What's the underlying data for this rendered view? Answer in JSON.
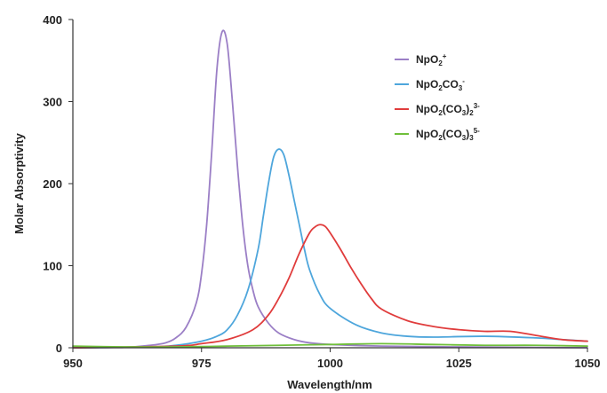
{
  "chart_data": {
    "type": "line",
    "xlabel": "Wavelength/nm",
    "ylabel": "Molar Absorptivity",
    "xlim": [
      950,
      1050
    ],
    "ylim": [
      0,
      400
    ],
    "xticks": [
      950,
      975,
      1000,
      1025,
      1050
    ],
    "yticks": [
      0,
      100,
      200,
      300,
      400
    ],
    "grid": false,
    "legend_position": "top-right",
    "series": [
      {
        "name": "NpO2+",
        "legend": {
          "base": "NpO",
          "sub": "2",
          "tail": "",
          "sup": "+",
          "after": ""
        },
        "color": "#9b7fc6",
        "x": [
          950,
          960,
          965,
          968,
          970,
          972,
          974,
          975,
          976,
          977,
          978,
          979,
          980,
          981,
          982,
          983,
          984,
          985,
          986,
          988,
          990,
          993,
          996,
          1000,
          1010,
          1025,
          1050
        ],
        "y": [
          0,
          0.5,
          3,
          6,
          12,
          25,
          55,
          90,
          150,
          240,
          340,
          385,
          370,
          300,
          220,
          150,
          100,
          70,
          50,
          30,
          18,
          10,
          6,
          4,
          2,
          1,
          0
        ]
      },
      {
        "name": "NpO2CO3-",
        "legend": {
          "base": "NpO",
          "sub": "2",
          "tail": "CO",
          "sup": "-",
          "after": "",
          "sub2": "3"
        },
        "color": "#4ea6dc",
        "x": [
          950,
          965,
          970,
          975,
          978,
          980,
          982,
          984,
          986,
          987,
          988,
          989,
          990,
          991,
          992,
          993,
          994,
          995,
          996,
          998,
          1000,
          1005,
          1010,
          1015,
          1020,
          1030,
          1040,
          1045,
          1050
        ],
        "y": [
          0,
          1,
          3,
          8,
          14,
          22,
          40,
          70,
          120,
          160,
          200,
          232,
          242,
          235,
          210,
          180,
          150,
          120,
          95,
          65,
          48,
          28,
          18,
          14,
          13,
          14,
          12,
          10,
          8
        ]
      },
      {
        "name": "NpO2(CO3)2 3-",
        "legend": {
          "base": "NpO",
          "sub": "2",
          "tail": "(CO",
          "sub2": "3",
          "after": ")",
          "sub3": "2",
          "sup": "3-"
        },
        "color": "#e03c3c",
        "x": [
          950,
          970,
          975,
          980,
          985,
          988,
          990,
          992,
          994,
          996,
          997,
          998,
          999,
          1000,
          1002,
          1004,
          1006,
          1008,
          1010,
          1015,
          1020,
          1025,
          1030,
          1035,
          1040,
          1045,
          1050
        ],
        "y": [
          0,
          2,
          5,
          10,
          22,
          40,
          60,
          85,
          115,
          140,
          147,
          150,
          148,
          140,
          120,
          98,
          78,
          60,
          47,
          33,
          26,
          22,
          20,
          20,
          15,
          10,
          8
        ]
      },
      {
        "name": "NpO2(CO3)3 5-",
        "legend": {
          "base": "NpO",
          "sub": "2",
          "tail": "(CO",
          "sub2": "3",
          "after": ")",
          "sub3": "3",
          "sup": "5-"
        },
        "color": "#6fbf3a",
        "x": [
          950,
          960,
          970,
          980,
          990,
          1000,
          1010,
          1020,
          1030,
          1040,
          1050
        ],
        "y": [
          2,
          1,
          1,
          2,
          3,
          4,
          5,
          4,
          3,
          3,
          2
        ]
      }
    ]
  }
}
